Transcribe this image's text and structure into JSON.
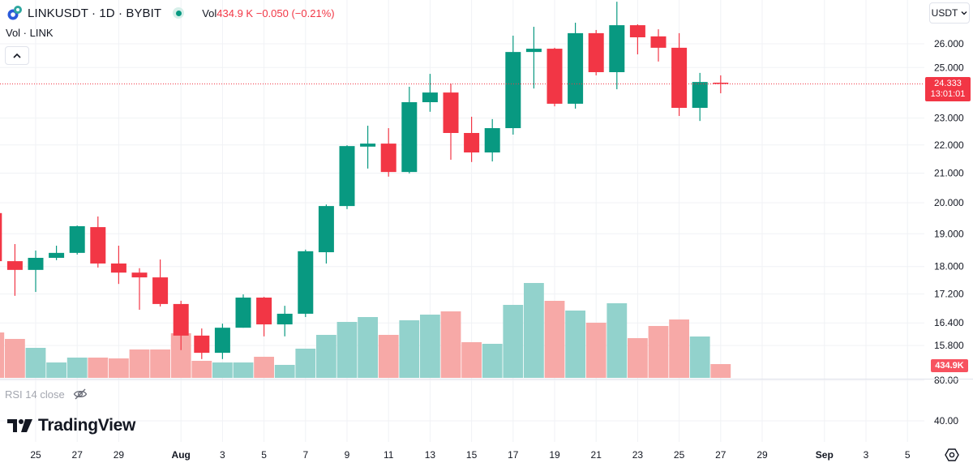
{
  "header": {
    "symbol_title": "LINKUSDT · 1D · BYBIT",
    "vol_label": "Vol",
    "vol_value": "434.9 K",
    "change": "−0.050 (−0.21%)",
    "sub_title": "Vol · LINK",
    "currency": "USDT"
  },
  "rsi": {
    "label": "RSI 14 close",
    "ticks": [
      "80.00",
      "40.00"
    ]
  },
  "logo": "TradingView",
  "last_price": {
    "value": "24.333",
    "countdown": "13:01:01",
    "volume": "434.9K"
  },
  "colors": {
    "up": "#089981",
    "down": "#f23645",
    "vol_up": "#92d2cc",
    "vol_down": "#f7a9a7"
  },
  "chart_data": {
    "type": "candlestick",
    "price_scale": "log",
    "price_ticks": [
      "26.000",
      "25.000",
      "23.000",
      "22.000",
      "21.000",
      "20.000",
      "19.000",
      "18.000",
      "17.200",
      "16.400",
      "15.800"
    ],
    "time_ticks": [
      {
        "label": "25",
        "date": "Jul 25"
      },
      {
        "label": "27",
        "date": "Jul 27"
      },
      {
        "label": "29",
        "date": "Jul 29"
      },
      {
        "label": "Aug",
        "date": "Aug 1"
      },
      {
        "label": "3",
        "date": "Aug 3"
      },
      {
        "label": "5",
        "date": "Aug 5"
      },
      {
        "label": "7",
        "date": "Aug 7"
      },
      {
        "label": "9",
        "date": "Aug 9"
      },
      {
        "label": "11",
        "date": "Aug 11"
      },
      {
        "label": "13",
        "date": "Aug 13"
      },
      {
        "label": "15",
        "date": "Aug 15"
      },
      {
        "label": "17",
        "date": "Aug 17"
      },
      {
        "label": "19",
        "date": "Aug 19"
      },
      {
        "label": "21",
        "date": "Aug 21"
      },
      {
        "label": "23",
        "date": "Aug 23"
      },
      {
        "label": "25",
        "date": "Aug 25"
      },
      {
        "label": "27",
        "date": "Aug 27"
      },
      {
        "label": "29",
        "date": "Aug 29"
      },
      {
        "label": "Sep",
        "date": "Sep 1"
      },
      {
        "label": "3",
        "date": "Sep 3"
      },
      {
        "label": "5",
        "date": "Sep 5"
      }
    ],
    "candles": [
      {
        "date": "Jul 23",
        "o": 19.66,
        "h": 19.75,
        "l": 18.1,
        "c": 18.16,
        "v": 1433
      },
      {
        "date": "Jul 24",
        "o": 18.16,
        "h": 18.68,
        "l": 17.15,
        "c": 17.9,
        "v": 1229
      },
      {
        "date": "Jul 25",
        "o": 17.9,
        "h": 18.48,
        "l": 17.26,
        "c": 18.26,
        "v": 947
      },
      {
        "date": "Jul 26",
        "o": 18.26,
        "h": 18.63,
        "l": 18.19,
        "c": 18.41,
        "v": 486
      },
      {
        "date": "Jul 27",
        "o": 18.41,
        "h": 19.26,
        "l": 18.36,
        "c": 19.24,
        "v": 640
      },
      {
        "date": "Jul 28",
        "o": 19.21,
        "h": 19.55,
        "l": 17.97,
        "c": 18.09,
        "v": 640
      },
      {
        "date": "Jul 29",
        "o": 18.09,
        "h": 18.63,
        "l": 17.49,
        "c": 17.82,
        "v": 614
      },
      {
        "date": "Jul 30",
        "o": 17.82,
        "h": 17.95,
        "l": 16.76,
        "c": 17.68,
        "v": 896
      },
      {
        "date": "Jul 31",
        "o": 17.68,
        "h": 18.21,
        "l": 16.85,
        "c": 16.92,
        "v": 896
      },
      {
        "date": "Aug 1",
        "o": 16.92,
        "h": 17.01,
        "l": 15.68,
        "c": 16.06,
        "v": 1408
      },
      {
        "date": "Aug 2",
        "o": 16.06,
        "h": 16.25,
        "l": 15.45,
        "c": 15.61,
        "v": 538
      },
      {
        "date": "Aug 3",
        "o": 15.61,
        "h": 16.38,
        "l": 15.45,
        "c": 16.27,
        "v": 486
      },
      {
        "date": "Aug 4",
        "o": 16.27,
        "h": 17.19,
        "l": 16.27,
        "c": 17.1,
        "v": 486
      },
      {
        "date": "Aug 5",
        "o": 17.1,
        "h": 17.12,
        "l": 16.04,
        "c": 16.36,
        "v": 666
      },
      {
        "date": "Aug 6",
        "o": 16.36,
        "h": 16.87,
        "l": 16.04,
        "c": 16.65,
        "v": 410
      },
      {
        "date": "Aug 7",
        "o": 16.65,
        "h": 18.51,
        "l": 16.56,
        "c": 18.46,
        "v": 922
      },
      {
        "date": "Aug 8",
        "o": 18.43,
        "h": 19.94,
        "l": 18.09,
        "c": 19.89,
        "v": 1357
      },
      {
        "date": "Aug 9",
        "o": 19.89,
        "h": 21.99,
        "l": 19.79,
        "c": 21.96,
        "v": 1766
      },
      {
        "date": "Aug 10",
        "o": 21.94,
        "h": 22.71,
        "l": 21.16,
        "c": 22.05,
        "v": 1920
      },
      {
        "date": "Aug 11",
        "o": 22.05,
        "h": 22.62,
        "l": 20.88,
        "c": 21.04,
        "v": 1357
      },
      {
        "date": "Aug 12",
        "o": 21.04,
        "h": 24.22,
        "l": 20.99,
        "c": 23.61,
        "v": 1818
      },
      {
        "date": "Aug 13",
        "o": 23.61,
        "h": 24.74,
        "l": 23.24,
        "c": 23.99,
        "v": 1997
      },
      {
        "date": "Aug 14",
        "o": 23.99,
        "h": 24.35,
        "l": 21.47,
        "c": 22.44,
        "v": 2099
      },
      {
        "date": "Aug 15",
        "o": 22.44,
        "h": 23.05,
        "l": 21.39,
        "c": 21.73,
        "v": 1126
      },
      {
        "date": "Aug 16",
        "o": 21.73,
        "h": 22.96,
        "l": 21.41,
        "c": 22.62,
        "v": 1075
      },
      {
        "date": "Aug 17",
        "o": 22.62,
        "h": 26.35,
        "l": 22.38,
        "c": 25.65,
        "v": 2304
      },
      {
        "date": "Aug 18",
        "o": 25.65,
        "h": 26.74,
        "l": 24.15,
        "c": 25.79,
        "v": 2995
      },
      {
        "date": "Aug 19",
        "o": 25.79,
        "h": 25.83,
        "l": 23.45,
        "c": 23.55,
        "v": 2432
      },
      {
        "date": "Aug 20",
        "o": 23.55,
        "h": 26.92,
        "l": 23.36,
        "c": 26.46,
        "v": 2125
      },
      {
        "date": "Aug 21",
        "o": 26.46,
        "h": 26.6,
        "l": 24.68,
        "c": 24.81,
        "v": 1741
      },
      {
        "date": "Aug 22",
        "o": 24.81,
        "h": 27.87,
        "l": 24.12,
        "c": 26.81,
        "v": 2355
      },
      {
        "date": "Aug 23",
        "o": 26.81,
        "h": 26.85,
        "l": 25.55,
        "c": 26.28,
        "v": 1254
      },
      {
        "date": "Aug 24",
        "o": 26.32,
        "h": 26.63,
        "l": 25.25,
        "c": 25.83,
        "v": 1638
      },
      {
        "date": "Aug 25",
        "o": 25.83,
        "h": 26.46,
        "l": 23.08,
        "c": 23.39,
        "v": 1843
      },
      {
        "date": "Aug 26",
        "o": 23.39,
        "h": 24.78,
        "l": 22.89,
        "c": 24.41,
        "v": 1306
      },
      {
        "date": "Aug 27",
        "o": 24.383,
        "h": 24.68,
        "l": 23.96,
        "c": 24.333,
        "v": 434.9
      }
    ]
  }
}
